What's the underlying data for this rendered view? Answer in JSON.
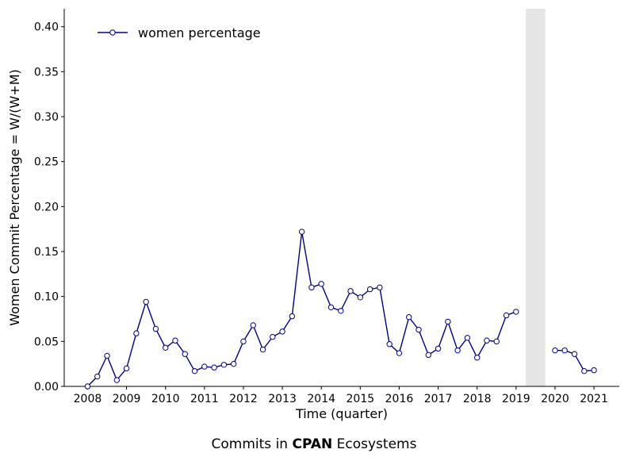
{
  "chart_data": {
    "type": "line",
    "xlabel": "Time (quarter)",
    "ylabel": "Women Commit Percentage = W/(W+M)",
    "xlim": [
      2007.4,
      2021.65
    ],
    "ylim": [
      0,
      0.42
    ],
    "x_ticks": [
      2008,
      2009,
      2010,
      2011,
      2012,
      2013,
      2014,
      2015,
      2016,
      2017,
      2018,
      2019,
      2020,
      2021
    ],
    "y_ticks": [
      "0.00",
      "0.05",
      "0.10",
      "0.15",
      "0.20",
      "0.25",
      "0.30",
      "0.35",
      "0.40"
    ],
    "legend": {
      "placement": "upper-left",
      "entries": [
        "women percentage"
      ]
    },
    "shaded_region": [
      2019.25,
      2019.75
    ],
    "colors": {
      "line": "#00008b",
      "marker_fill": "#ffffff",
      "shade": "#e5e5e5"
    },
    "series": [
      {
        "name": "women percentage",
        "segments": [
          {
            "x": [
              2008.0,
              2008.25,
              2008.5,
              2008.75,
              2009.0,
              2009.25,
              2009.5,
              2009.75,
              2010.0,
              2010.25,
              2010.5,
              2010.75,
              2011.0,
              2011.25,
              2011.5,
              2011.75,
              2012.0,
              2012.25,
              2012.5,
              2012.75,
              2013.0,
              2013.25,
              2013.5,
              2013.75,
              2014.0,
              2014.25,
              2014.5,
              2014.75,
              2015.0,
              2015.25,
              2015.5,
              2015.75,
              2016.0,
              2016.25,
              2016.5,
              2016.75,
              2017.0,
              2017.25,
              2017.5,
              2017.75,
              2018.0,
              2018.25,
              2018.5,
              2018.75,
              2019.0
            ],
            "y": [
              0.0,
              0.011,
              0.034,
              0.007,
              0.02,
              0.059,
              0.094,
              0.064,
              0.043,
              0.051,
              0.036,
              0.017,
              0.022,
              0.021,
              0.024,
              0.025,
              0.05,
              0.068,
              0.041,
              0.055,
              0.061,
              0.078,
              0.172,
              0.11,
              0.114,
              0.088,
              0.084,
              0.106,
              0.099,
              0.108,
              0.11,
              0.047,
              0.037,
              0.077,
              0.063,
              0.035,
              0.042,
              0.072,
              0.04,
              0.054,
              0.032,
              0.051,
              0.05,
              0.079,
              0.083
            ]
          },
          {
            "x": [
              2020.0,
              2020.25,
              2020.5,
              2020.75,
              2021.0
            ],
            "y": [
              0.04,
              0.04,
              0.036,
              0.017,
              0.018
            ]
          }
        ]
      }
    ]
  },
  "caption": {
    "prefix": "Commits in ",
    "bold": "CPAN",
    "suffix": " Ecosystems"
  }
}
